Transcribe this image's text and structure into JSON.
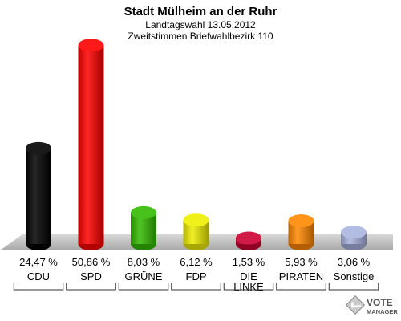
{
  "chart_data": {
    "type": "bar",
    "title": "Stadt Mülheim an der Ruhr",
    "subtitle": [
      "Landtagswahl 13.05.2012",
      "Zweitstimmen Briefwahlbezirk 110"
    ],
    "categories": [
      [
        "CDU"
      ],
      [
        "SPD"
      ],
      [
        "GRÜNE"
      ],
      [
        "FDP"
      ],
      [
        "DIE",
        "LINKE"
      ],
      [
        "PIRATEN"
      ],
      [
        "Sonstige"
      ]
    ],
    "values": [
      24.47,
      50.86,
      8.03,
      6.12,
      1.53,
      5.93,
      3.06
    ],
    "value_labels": [
      "24,47 %",
      "50,86 %",
      "8,03 %",
      "6,12 %",
      "1,53 %",
      "5,93 %",
      "3,06 %"
    ],
    "colors": [
      "#000000",
      "#ff0000",
      "#33bb00",
      "#eeee00",
      "#cc0033",
      "#ff8800",
      "#aab4e0"
    ],
    "ylim": [
      0,
      55
    ],
    "grid": false
  },
  "logo": {
    "line1": "VOTE",
    "line2": "MANAGER"
  }
}
